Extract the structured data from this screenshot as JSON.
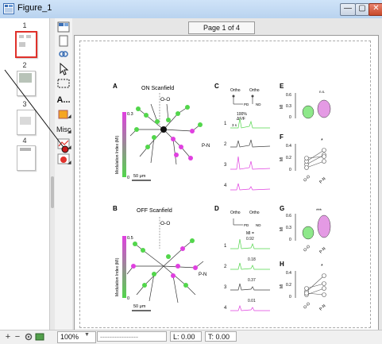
{
  "window": {
    "title": "Figure_1",
    "buttons": {
      "minimize": "—",
      "maximize": "▢",
      "close": "✕"
    }
  },
  "thumbnails": [
    {
      "number": "1",
      "selected": true
    },
    {
      "number": "2",
      "selected": false
    },
    {
      "number": "3",
      "selected": false
    },
    {
      "number": "4",
      "selected": false
    }
  ],
  "toolbox": {
    "text_tool": "A...",
    "misc_tool": "Misc"
  },
  "page_indicator": "Page 1 of 4",
  "statusbar": {
    "add": "+",
    "remove": "−",
    "zoom": "100%",
    "coords": "----------------",
    "left": "L: 0.00",
    "top": "T: 0.00"
  },
  "figure": {
    "panel_labels": {
      "a": "A",
      "b": "B",
      "c": "C",
      "d": "D",
      "e": "E",
      "f": "F",
      "g": "G",
      "h": "H"
    },
    "a_title": "ON Scanfield",
    "b_title": "OFF Scanfield",
    "o_o": "O-O",
    "p_n": "P-N",
    "colorbar_label": "Modulation Index (MI)",
    "colorbar_top": "0.3",
    "colorbar_bottom": "0",
    "colorbar_b_top": "0.5",
    "scale_bar": "50 μm",
    "ortho": "Ortho",
    "pd": "PD",
    "nd": "ND",
    "percent": "100%",
    "df": "ΔF/F",
    "time": "3 s",
    "mi_label": "MI =",
    "d_values": [
      "0.92",
      "0.18",
      "0.37",
      "0.01"
    ],
    "row_numbers": [
      "1",
      "2",
      "3",
      "4"
    ],
    "e_ticks": [
      "0.6",
      "0.3",
      "0"
    ],
    "e_sig": "n.s.",
    "f_ticks": [
      "0.4",
      "0.2",
      "0"
    ],
    "f_sig": "*",
    "g_ticks": [
      "0.6",
      "0.3",
      "0"
    ],
    "g_sig": "***",
    "h_ticks": [
      "0.4",
      "0.2",
      "0"
    ],
    "h_sig": "*",
    "mi_axis": "MI",
    "x_oo": "O-O",
    "x_pn": "P-N"
  },
  "colors": {
    "accent_red": "#e0312b",
    "green": "#52d64b",
    "magenta": "#e040e0",
    "black": "#111111"
  }
}
